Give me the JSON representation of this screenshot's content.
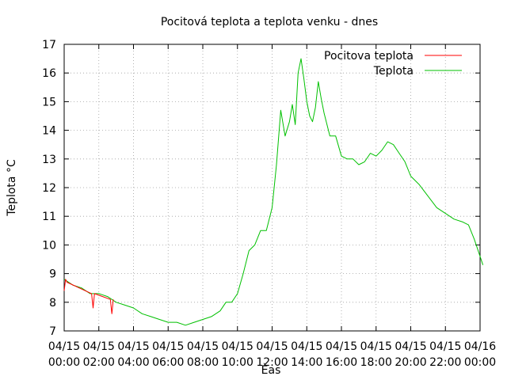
{
  "chart_data": {
    "type": "line",
    "title": "Pocitová teplota a teplota venku - dnes",
    "xlabel": "Èas",
    "ylabel": "Teplota °C",
    "ylim": [
      7,
      17
    ],
    "xlim": [
      "04/15 00:00",
      "04/16 00:00"
    ],
    "grid": true,
    "legend_position": "top-right",
    "x_tick_labels": [
      [
        "04/15",
        "00:00"
      ],
      [
        "04/15",
        "02:00"
      ],
      [
        "04/15",
        "04:00"
      ],
      [
        "04/15",
        "06:00"
      ],
      [
        "04/15",
        "08:00"
      ],
      [
        "04/15",
        "10:00"
      ],
      [
        "04/15",
        "12:00"
      ],
      [
        "04/15",
        "14:00"
      ],
      [
        "04/15",
        "16:00"
      ],
      [
        "04/15",
        "18:00"
      ],
      [
        "04/15",
        "20:00"
      ],
      [
        "04/15",
        "22:00"
      ],
      [
        "04/16",
        "00:00"
      ]
    ],
    "y_ticks": [
      7,
      8,
      9,
      10,
      11,
      12,
      13,
      14,
      15,
      16,
      17
    ],
    "series": [
      {
        "name": "Pocitova teplota",
        "color": "#ff0000",
        "points": [
          [
            "04/15 00:00",
            8.4
          ],
          [
            "04/15 00:05",
            8.8
          ],
          [
            "04/15 00:10",
            8.7
          ],
          [
            "04/15 01:35",
            8.3
          ],
          [
            "04/15 01:40",
            7.8
          ],
          [
            "04/15 01:45",
            8.3
          ],
          [
            "04/15 02:40",
            8.1
          ],
          [
            "04/15 02:45",
            7.6
          ],
          [
            "04/15 02:50",
            8.1
          ]
        ]
      },
      {
        "name": "Teplota",
        "color": "#00c000",
        "points": [
          [
            "04/15 00:00",
            8.8
          ],
          [
            "04/15 00:30",
            8.6
          ],
          [
            "04/15 01:00",
            8.5
          ],
          [
            "04/15 01:30",
            8.3
          ],
          [
            "04/15 02:00",
            8.3
          ],
          [
            "04/15 02:30",
            8.2
          ],
          [
            "04/15 03:00",
            8.0
          ],
          [
            "04/15 03:30",
            7.9
          ],
          [
            "04/15 04:00",
            7.8
          ],
          [
            "04/15 04:30",
            7.6
          ],
          [
            "04/15 05:00",
            7.5
          ],
          [
            "04/15 05:30",
            7.4
          ],
          [
            "04/15 06:00",
            7.3
          ],
          [
            "04/15 06:30",
            7.3
          ],
          [
            "04/15 07:00",
            7.2
          ],
          [
            "04/15 07:30",
            7.3
          ],
          [
            "04/15 08:00",
            7.4
          ],
          [
            "04/15 08:30",
            7.5
          ],
          [
            "04/15 09:00",
            7.7
          ],
          [
            "04/15 09:20",
            8.0
          ],
          [
            "04/15 09:40",
            8.0
          ],
          [
            "04/15 10:00",
            8.3
          ],
          [
            "04/15 10:20",
            9.0
          ],
          [
            "04/15 10:40",
            9.8
          ],
          [
            "04/15 11:00",
            10.0
          ],
          [
            "04/15 11:20",
            10.5
          ],
          [
            "04/15 11:40",
            10.5
          ],
          [
            "04/15 12:00",
            11.3
          ],
          [
            "04/15 12:15",
            12.8
          ],
          [
            "04/15 12:30",
            14.7
          ],
          [
            "04/15 12:45",
            13.8
          ],
          [
            "04/15 13:00",
            14.3
          ],
          [
            "04/15 13:10",
            14.9
          ],
          [
            "04/15 13:20",
            14.2
          ],
          [
            "04/15 13:30",
            16.0
          ],
          [
            "04/15 13:40",
            16.5
          ],
          [
            "04/15 13:50",
            15.8
          ],
          [
            "04/15 14:00",
            15.0
          ],
          [
            "04/15 14:10",
            14.5
          ],
          [
            "04/15 14:20",
            14.3
          ],
          [
            "04/15 14:30",
            14.8
          ],
          [
            "04/15 14:40",
            15.7
          ],
          [
            "04/15 14:50",
            15.1
          ],
          [
            "04/15 15:00",
            14.6
          ],
          [
            "04/15 15:20",
            13.8
          ],
          [
            "04/15 15:40",
            13.8
          ],
          [
            "04/15 16:00",
            13.1
          ],
          [
            "04/15 16:20",
            13.0
          ],
          [
            "04/15 16:40",
            13.0
          ],
          [
            "04/15 17:00",
            12.8
          ],
          [
            "04/15 17:20",
            12.9
          ],
          [
            "04/15 17:40",
            13.2
          ],
          [
            "04/15 18:00",
            13.1
          ],
          [
            "04/15 18:20",
            13.3
          ],
          [
            "04/15 18:40",
            13.6
          ],
          [
            "04/15 19:00",
            13.5
          ],
          [
            "04/15 19:20",
            13.2
          ],
          [
            "04/15 19:40",
            12.9
          ],
          [
            "04/15 20:00",
            12.4
          ],
          [
            "04/15 20:30",
            12.1
          ],
          [
            "04/15 21:00",
            11.7
          ],
          [
            "04/15 21:30",
            11.3
          ],
          [
            "04/15 22:00",
            11.1
          ],
          [
            "04/15 22:30",
            10.9
          ],
          [
            "04/15 23:00",
            10.8
          ],
          [
            "04/15 23:20",
            10.7
          ],
          [
            "04/15 23:40",
            10.2
          ],
          [
            "04/16 00:00",
            9.6
          ],
          [
            "04/16 00:10",
            9.3
          ]
        ]
      }
    ]
  }
}
